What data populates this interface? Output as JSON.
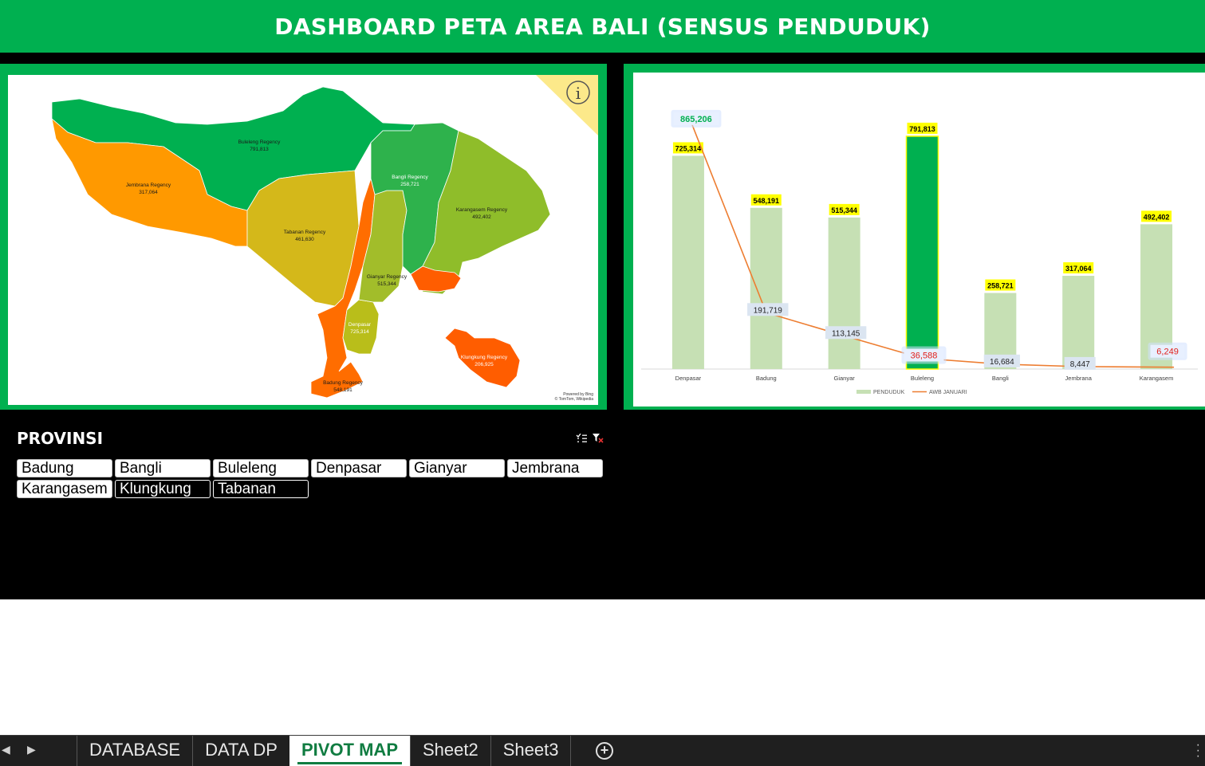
{
  "header": {
    "title": "DASHBOARD PETA AREA BALI (SENSUS PENDUDUK)"
  },
  "map": {
    "regions": [
      {
        "name": "Buleleng Regency",
        "value": "791,813",
        "color": "#00b050"
      },
      {
        "name": "Jembrana Regency",
        "value": "317,064",
        "color": "#ff9900"
      },
      {
        "name": "Tabanan Regency",
        "value": "461,630",
        "color": "#d4b81a"
      },
      {
        "name": "Bangli Regency",
        "value": "258,721",
        "color": "#ff6d00"
      },
      {
        "name": "Karangasem Regency",
        "value": "492,402",
        "color": "#b9be1a"
      },
      {
        "name": "Gianyar Regency",
        "value": "515,344",
        "color": "#a2bd2a"
      },
      {
        "name": "Denpasar",
        "value": "725,314",
        "color": "#2eb24c"
      },
      {
        "name": "Badung Regency",
        "value": "548,191",
        "color": "#8fbd2a"
      },
      {
        "name": "Klungkung Regency",
        "value": "206,925",
        "color": "#ff5d00"
      }
    ],
    "info_icon": "info-icon",
    "powered_by": "Powered by Bing",
    "copyright": "© TomTom, Wikipedia"
  },
  "chart_data": {
    "type": "bar",
    "categories": [
      "Denpasar",
      "Badung",
      "Gianyar",
      "Buleleng",
      "Bangli",
      "Jembrana",
      "Karangasem"
    ],
    "series": [
      {
        "name": "PENDUDUK",
        "kind": "bar",
        "color": "#c6e0b4",
        "highlight_color": "#00b050",
        "highlight_index": 3,
        "values": [
          725314,
          548191,
          515344,
          791813,
          258721,
          317064,
          492402
        ],
        "labels": [
          "725,314",
          "548,191",
          "515,344",
          "791,813",
          "258,721",
          "317,064",
          "492,402"
        ]
      },
      {
        "name": "AWB JANUARI",
        "kind": "line",
        "color": "#ed7d31",
        "values": [
          865206,
          191719,
          113145,
          36588,
          16684,
          8447,
          6249
        ],
        "labels": [
          "865,206",
          "191,719",
          "113,145",
          "36,588",
          "16,684",
          "8,447",
          "6,249"
        ]
      }
    ],
    "ylim": [
      0,
      900000
    ],
    "legend_position": "bottom",
    "grid": false
  },
  "slicer": {
    "title": "PROVINSI",
    "items": [
      {
        "label": "Badung",
        "selected": true
      },
      {
        "label": "Bangli",
        "selected": true
      },
      {
        "label": "Buleleng",
        "selected": true
      },
      {
        "label": "Denpasar",
        "selected": true
      },
      {
        "label": "Gianyar",
        "selected": true
      },
      {
        "label": "Jembrana",
        "selected": true
      },
      {
        "label": "Karangasem",
        "selected": true
      },
      {
        "label": "Klungkung",
        "selected": false
      },
      {
        "label": "Tabanan",
        "selected": false
      }
    ]
  },
  "tabs": [
    {
      "label": "DATABASE",
      "active": false
    },
    {
      "label": "DATA DP",
      "active": false
    },
    {
      "label": "PIVOT MAP",
      "active": true
    },
    {
      "label": "Sheet2",
      "active": false
    },
    {
      "label": "Sheet3",
      "active": false
    }
  ]
}
